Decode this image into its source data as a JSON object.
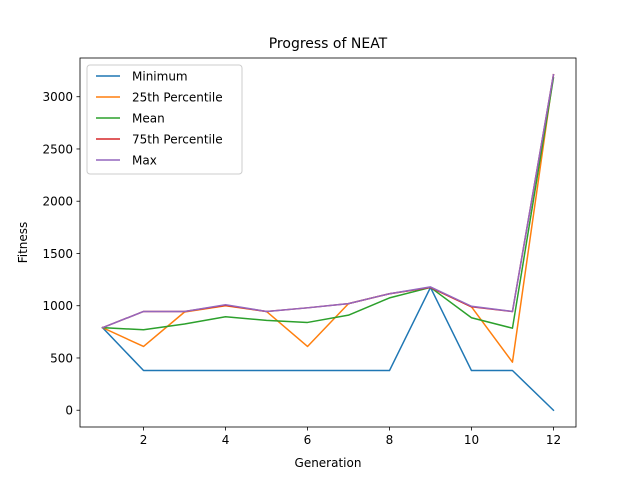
{
  "chart_data": {
    "type": "line",
    "title": "Progress of NEAT",
    "xlabel": "Generation",
    "ylabel": "Fitness",
    "xlim": [
      0.45,
      12.55
    ],
    "ylim": [
      -160.5,
      3370.5
    ],
    "grid": false,
    "legend_position": "top-left",
    "x": [
      1,
      2,
      3,
      4,
      5,
      6,
      7,
      8,
      9,
      10,
      11,
      12
    ],
    "xticks": [
      2,
      4,
      6,
      8,
      10,
      12
    ],
    "xtick_labels": [
      "2",
      "4",
      "6",
      "8",
      "10",
      "12"
    ],
    "yticks": [
      0,
      500,
      1000,
      1500,
      2000,
      2500,
      3000
    ],
    "ytick_labels": [
      "0",
      "500",
      "1000",
      "1500",
      "2000",
      "2500",
      "3000"
    ],
    "series": [
      {
        "name": "Minimum",
        "color": "#1f77b4",
        "values": [
          790,
          380,
          380,
          380,
          380,
          380,
          380,
          380,
          1175,
          380,
          380,
          0
        ]
      },
      {
        "name": "25th Percentile",
        "color": "#ff7f0e",
        "values": [
          790,
          610,
          940,
          1000,
          945,
          610,
          1020,
          1115,
          1175,
          990,
          460,
          3210
        ]
      },
      {
        "name": "Mean",
        "color": "#2ca02c",
        "values": [
          790,
          770,
          825,
          895,
          860,
          840,
          910,
          1075,
          1175,
          885,
          785,
          3180
        ]
      },
      {
        "name": "75th Percentile",
        "color": "#d62728",
        "values": [
          790,
          945,
          945,
          1005,
          945,
          980,
          1020,
          1115,
          1175,
          990,
          945,
          3210
        ]
      },
      {
        "name": "Max",
        "color": "#9467bd",
        "values": [
          790,
          945,
          945,
          1010,
          945,
          980,
          1020,
          1115,
          1180,
          995,
          945,
          3210
        ]
      }
    ]
  }
}
